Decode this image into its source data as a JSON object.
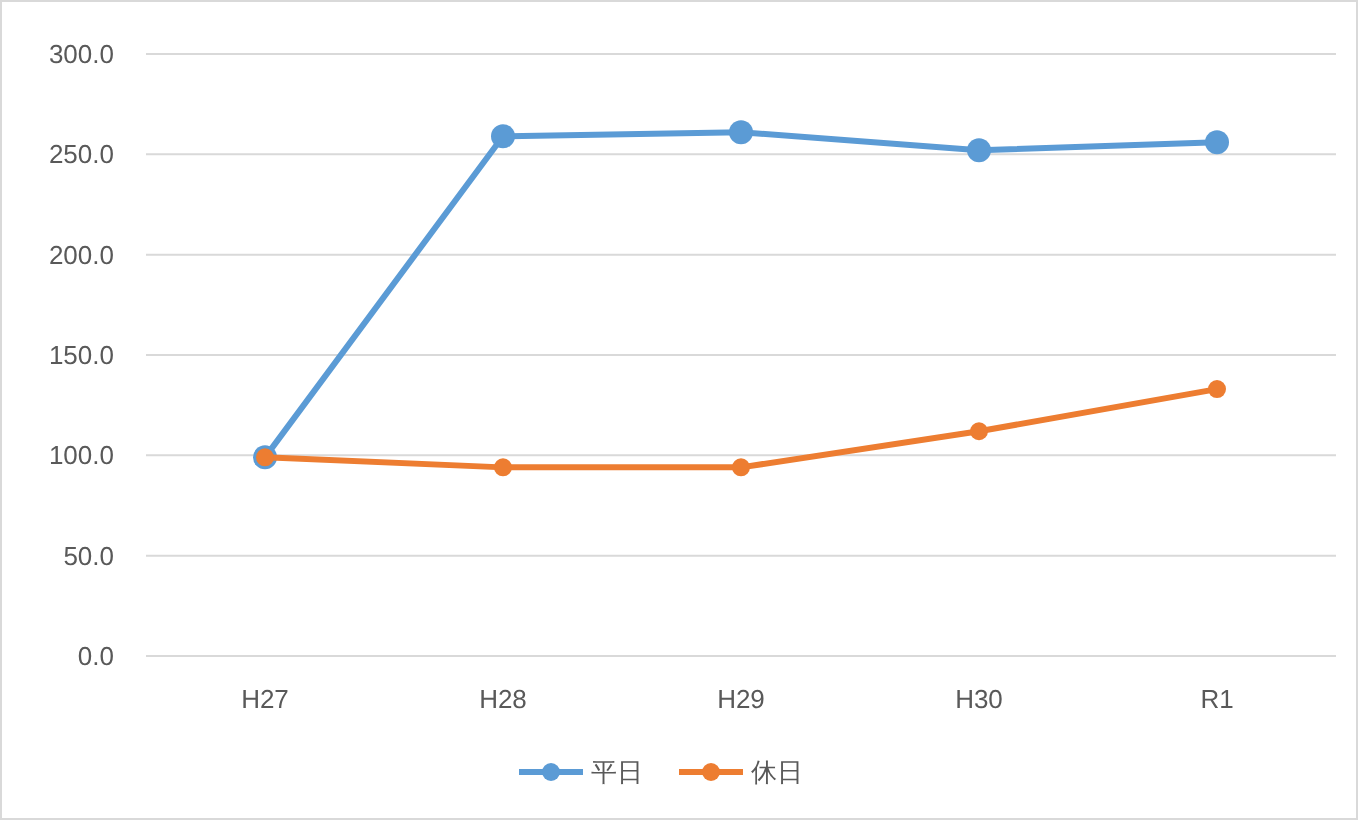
{
  "chart_data": {
    "type": "line",
    "categories": [
      "H27",
      "H28",
      "H29",
      "H30",
      "R1"
    ],
    "series": [
      {
        "name": "平日",
        "color": "#5b9bd5",
        "values": [
          99,
          259,
          261,
          252,
          256
        ]
      },
      {
        "name": "休日",
        "color": "#ed7d31",
        "values": [
          99,
          94,
          94,
          112,
          133
        ]
      }
    ],
    "ylim": [
      0,
      300
    ],
    "yticks": [
      {
        "value": 0,
        "label": "0.0"
      },
      {
        "value": 50,
        "label": "50.0"
      },
      {
        "value": 100,
        "label": "100.0"
      },
      {
        "value": 150,
        "label": "150.0"
      },
      {
        "value": 200,
        "label": "200.0"
      },
      {
        "value": 250,
        "label": "250.0"
      },
      {
        "value": 300,
        "label": "300.0"
      }
    ],
    "grid": "y",
    "legend": "bottom",
    "marker": "circle",
    "line_style": "solid"
  }
}
